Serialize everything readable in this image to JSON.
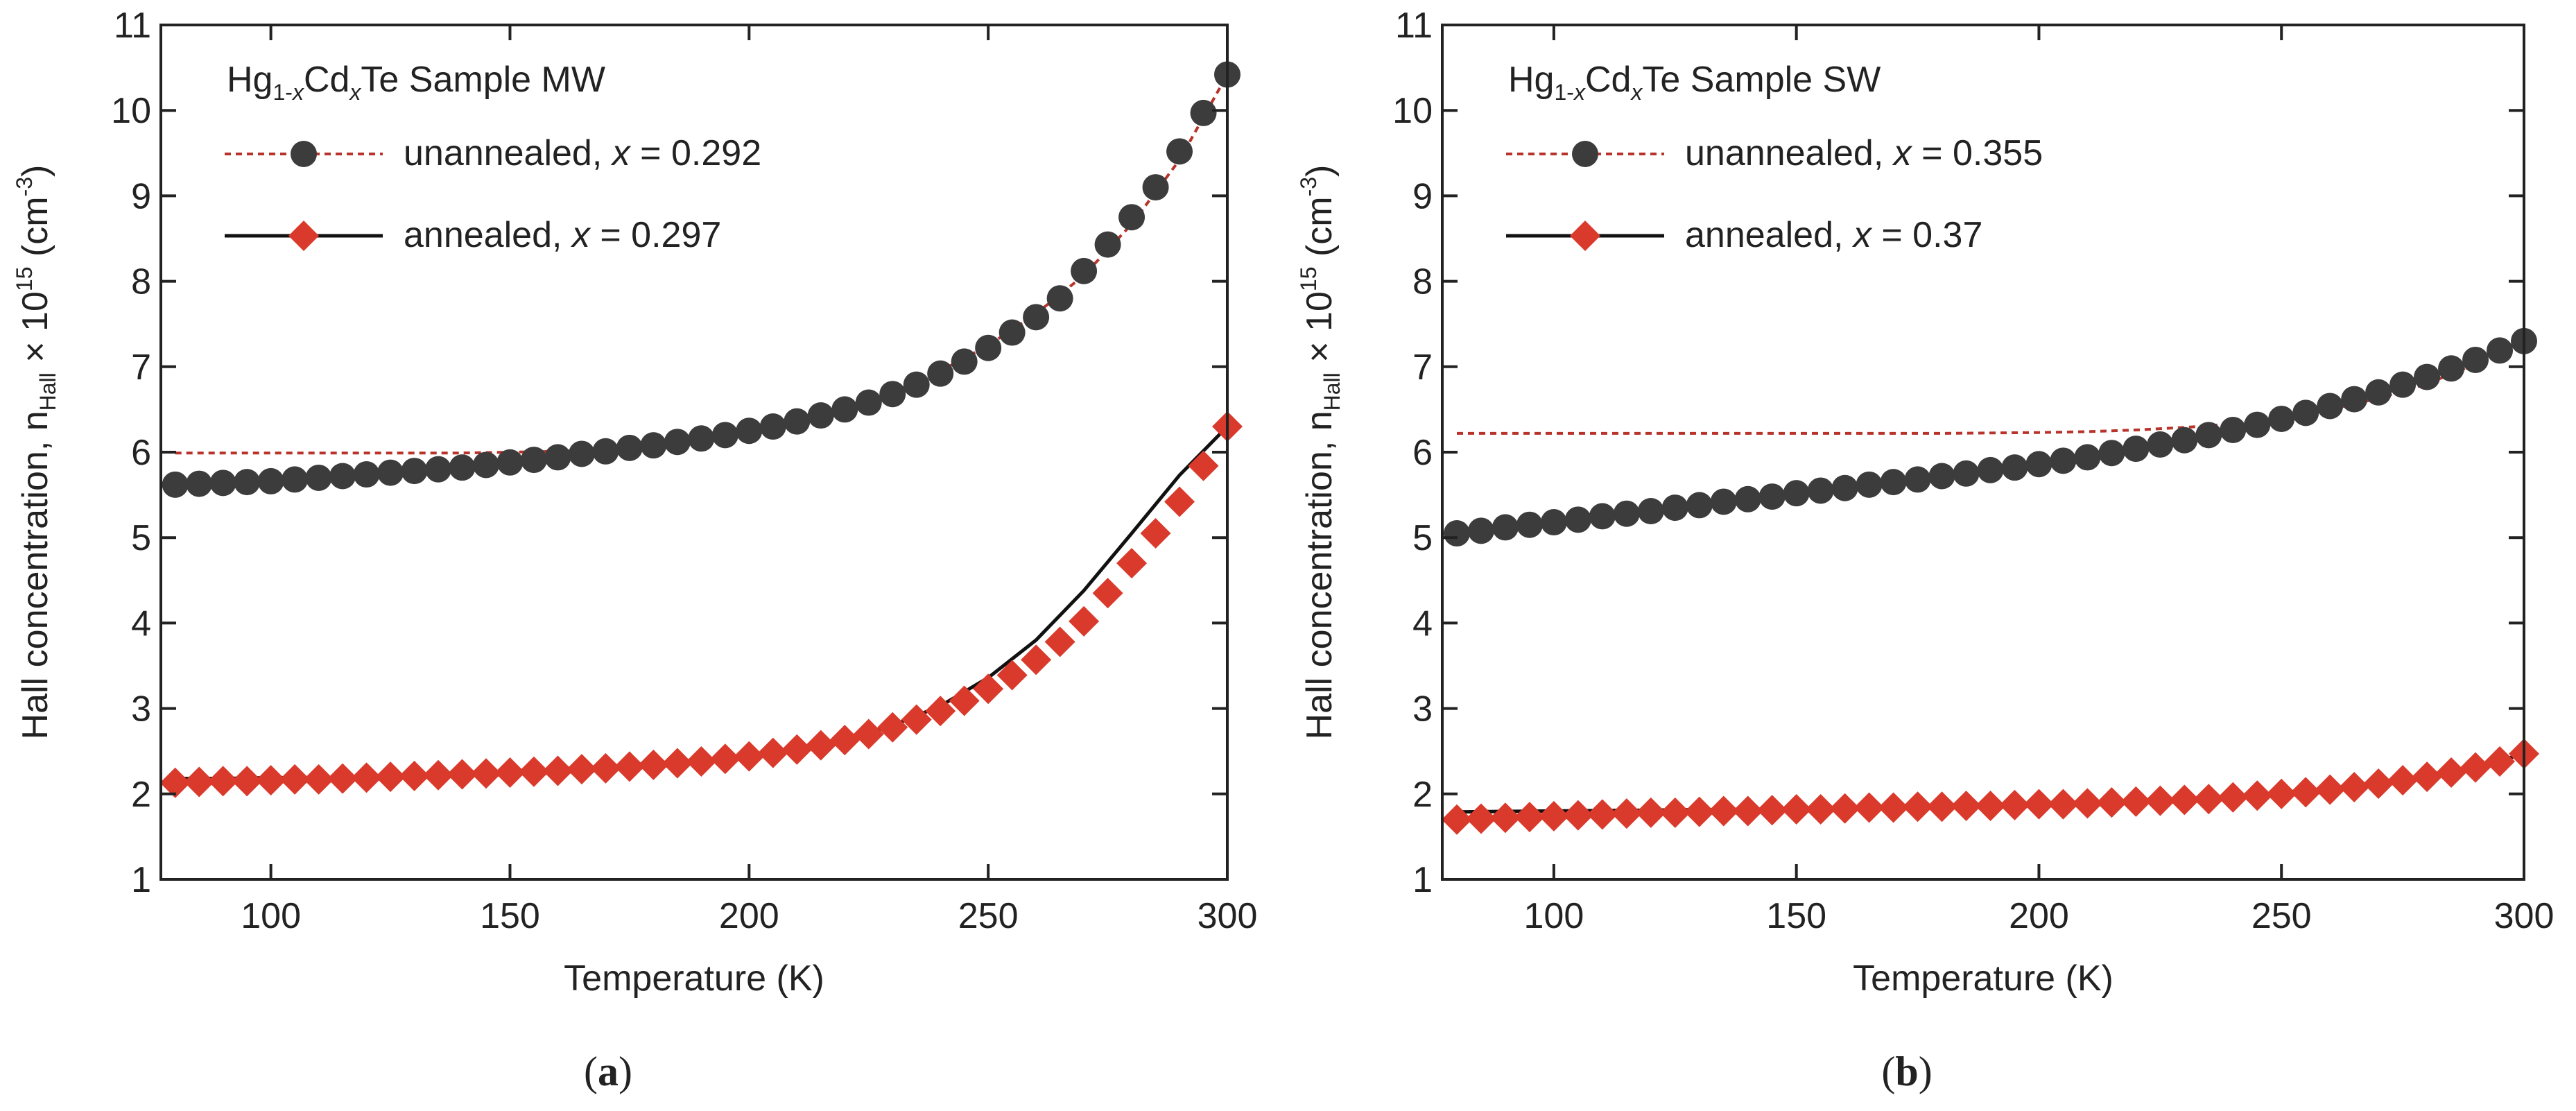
{
  "figure": {
    "panels": [
      {
        "id": "a",
        "label_letter": "a",
        "sample_prefix": "Hg",
        "sample_sub1": "1-",
        "sample_subx": "x",
        "sample_mid": "Cd",
        "sample_sub2": "x",
        "sample_suffix": "Te Sample MW",
        "legend": [
          {
            "name": "unannealed",
            "x_text": "x",
            "value_text": " = 0.292",
            "marker": "circle",
            "line": "dotted"
          },
          {
            "name": "annealed",
            "x_text": "x",
            "value_text": " = 0.297",
            "marker": "diamond",
            "line": "solid"
          }
        ]
      },
      {
        "id": "b",
        "label_letter": "b",
        "sample_prefix": "Hg",
        "sample_sub1": "1-",
        "sample_subx": "x",
        "sample_mid": "Cd",
        "sample_sub2": "x",
        "sample_suffix": "Te Sample SW",
        "legend": [
          {
            "name": "unannealed",
            "x_text": "x",
            "value_text": " = 0.355",
            "marker": "circle",
            "line": "dotted"
          },
          {
            "name": "annealed",
            "x_text": "x",
            "value_text": " = 0.37",
            "marker": "diamond",
            "line": "solid"
          }
        ]
      }
    ],
    "ylabel_main": "Hall concentration, n",
    "ylabel_sub": "Hall",
    "ylabel_times": " × 10",
    "ylabel_sup": "15",
    "ylabel_unit": " (cm",
    "ylabel_unit_sup": "-3",
    "ylabel_close": ")",
    "xlabel": "Temperature (K)"
  },
  "colors": {
    "unannealed_marker": "#3c3c3c",
    "annealed_marker": "#d93a2b",
    "fit_unannealed": "#b8332a",
    "fit_annealed": "#111111",
    "axis": "#222222"
  },
  "chart_data": [
    {
      "type": "scatter",
      "panel": "a",
      "title": "Hg1-xCdxTe Sample MW",
      "xlabel": "Temperature (K)",
      "ylabel": "Hall concentration, nHall × 10^15 (cm^-3)",
      "xlim": [
        77,
        300
      ],
      "ylim": [
        1,
        11
      ],
      "xticks": [
        100,
        150,
        200,
        250,
        300
      ],
      "yticks": [
        1,
        2,
        3,
        4,
        5,
        6,
        7,
        8,
        9,
        10,
        11
      ],
      "grid": false,
      "legend_position": "top-left",
      "series": [
        {
          "name": "unannealed, x = 0.292",
          "marker": "circle",
          "x": [
            80,
            85,
            90,
            95,
            100,
            105,
            110,
            115,
            120,
            125,
            130,
            135,
            140,
            145,
            150,
            155,
            160,
            165,
            170,
            175,
            180,
            185,
            190,
            195,
            200,
            205,
            210,
            215,
            220,
            225,
            230,
            235,
            240,
            245,
            250,
            255,
            260,
            265,
            270,
            275,
            280,
            285,
            290,
            295,
            300
          ],
          "values": [
            5.62,
            5.63,
            5.64,
            5.65,
            5.66,
            5.68,
            5.7,
            5.72,
            5.74,
            5.76,
            5.78,
            5.8,
            5.82,
            5.85,
            5.88,
            5.91,
            5.94,
            5.98,
            6.01,
            6.05,
            6.08,
            6.12,
            6.16,
            6.2,
            6.25,
            6.3,
            6.36,
            6.43,
            6.5,
            6.58,
            6.68,
            6.79,
            6.92,
            7.06,
            7.22,
            7.4,
            7.58,
            7.8,
            8.12,
            8.43,
            8.75,
            9.1,
            9.52,
            9.97,
            10.42
          ]
        },
        {
          "name": "annealed, x = 0.297",
          "marker": "diamond",
          "x": [
            80,
            85,
            90,
            95,
            100,
            105,
            110,
            115,
            120,
            125,
            130,
            135,
            140,
            145,
            150,
            155,
            160,
            165,
            170,
            175,
            180,
            185,
            190,
            195,
            200,
            205,
            210,
            215,
            220,
            225,
            230,
            235,
            240,
            245,
            250,
            255,
            260,
            265,
            270,
            275,
            280,
            285,
            290,
            295,
            300
          ],
          "values": [
            2.13,
            2.14,
            2.15,
            2.15,
            2.16,
            2.17,
            2.17,
            2.18,
            2.19,
            2.2,
            2.21,
            2.22,
            2.23,
            2.24,
            2.25,
            2.26,
            2.27,
            2.29,
            2.3,
            2.32,
            2.34,
            2.36,
            2.38,
            2.41,
            2.44,
            2.48,
            2.52,
            2.57,
            2.63,
            2.7,
            2.78,
            2.87,
            2.97,
            3.09,
            3.23,
            3.39,
            3.57,
            3.78,
            4.02,
            4.35,
            4.7,
            5.05,
            5.42,
            5.84,
            6.3
          ]
        },
        {
          "name": "unannealed fit",
          "line": "dotted",
          "x": [
            80,
            90,
            100,
            110,
            120,
            130,
            140,
            150,
            160,
            170,
            180,
            190,
            200,
            210,
            220,
            230,
            240,
            250,
            260,
            270,
            280,
            290,
            300
          ],
          "values": [
            5.99,
            5.99,
            5.99,
            5.99,
            5.99,
            5.99,
            5.99,
            6.0,
            6.01,
            6.03,
            6.07,
            6.13,
            6.22,
            6.34,
            6.5,
            6.7,
            6.95,
            7.25,
            7.62,
            8.07,
            8.67,
            9.42,
            10.42
          ]
        },
        {
          "name": "annealed fit",
          "line": "solid",
          "x": [
            80,
            90,
            100,
            110,
            120,
            130,
            140,
            150,
            160,
            170,
            180,
            190,
            200,
            210,
            220,
            230,
            240,
            250,
            260,
            270,
            280,
            290,
            300
          ],
          "values": [
            2.18,
            2.18,
            2.19,
            2.19,
            2.19,
            2.2,
            2.21,
            2.23,
            2.25,
            2.28,
            2.32,
            2.37,
            2.43,
            2.52,
            2.64,
            2.8,
            3.03,
            3.36,
            3.8,
            4.38,
            5.05,
            5.73,
            6.3
          ]
        }
      ]
    },
    {
      "type": "scatter",
      "panel": "b",
      "title": "Hg1-xCdxTe Sample SW",
      "xlabel": "Temperature (K)",
      "ylabel": "Hall concentration, nHall × 10^15 (cm^-3)",
      "xlim": [
        77,
        300
      ],
      "ylim": [
        1,
        11
      ],
      "xticks": [
        100,
        150,
        200,
        250,
        300
      ],
      "yticks": [
        1,
        2,
        3,
        4,
        5,
        6,
        7,
        8,
        9,
        10,
        11
      ],
      "grid": false,
      "legend_position": "top-left",
      "series": [
        {
          "name": "unannealed, x = 0.355",
          "marker": "circle",
          "x": [
            80,
            85,
            90,
            95,
            100,
            105,
            110,
            115,
            120,
            125,
            130,
            135,
            140,
            145,
            150,
            155,
            160,
            165,
            170,
            175,
            180,
            185,
            190,
            195,
            200,
            205,
            210,
            215,
            220,
            225,
            230,
            235,
            240,
            245,
            250,
            255,
            260,
            265,
            270,
            275,
            280,
            285,
            290,
            295,
            300
          ],
          "values": [
            5.05,
            5.08,
            5.12,
            5.15,
            5.18,
            5.21,
            5.25,
            5.28,
            5.31,
            5.35,
            5.38,
            5.42,
            5.45,
            5.48,
            5.52,
            5.55,
            5.58,
            5.62,
            5.65,
            5.68,
            5.72,
            5.75,
            5.79,
            5.82,
            5.86,
            5.9,
            5.94,
            5.99,
            6.04,
            6.09,
            6.14,
            6.2,
            6.26,
            6.32,
            6.39,
            6.46,
            6.54,
            6.62,
            6.7,
            6.79,
            6.88,
            6.98,
            7.08,
            7.19,
            7.3
          ]
        },
        {
          "name": "annealed, x = 0.37",
          "marker": "diamond",
          "x": [
            80,
            85,
            90,
            95,
            100,
            105,
            110,
            115,
            120,
            125,
            130,
            135,
            140,
            145,
            150,
            155,
            160,
            165,
            170,
            175,
            180,
            185,
            190,
            195,
            200,
            205,
            210,
            215,
            220,
            225,
            230,
            235,
            240,
            245,
            250,
            255,
            260,
            265,
            270,
            275,
            280,
            285,
            290,
            295,
            300
          ],
          "values": [
            1.7,
            1.71,
            1.72,
            1.73,
            1.74,
            1.75,
            1.76,
            1.77,
            1.78,
            1.78,
            1.79,
            1.8,
            1.8,
            1.81,
            1.82,
            1.82,
            1.83,
            1.84,
            1.84,
            1.85,
            1.85,
            1.86,
            1.86,
            1.87,
            1.88,
            1.88,
            1.89,
            1.9,
            1.91,
            1.92,
            1.93,
            1.94,
            1.96,
            1.98,
            2.0,
            2.02,
            2.05,
            2.08,
            2.12,
            2.16,
            2.2,
            2.25,
            2.31,
            2.38,
            2.47
          ]
        },
        {
          "name": "unannealed fit",
          "line": "dotted",
          "x": [
            80,
            100,
            120,
            140,
            160,
            180,
            200,
            210,
            220,
            230,
            240,
            250,
            260,
            270,
            280,
            290,
            300
          ],
          "values": [
            6.22,
            6.22,
            6.22,
            6.22,
            6.22,
            6.22,
            6.23,
            6.24,
            6.26,
            6.29,
            6.33,
            6.4,
            6.5,
            6.63,
            6.8,
            7.03,
            7.3
          ]
        },
        {
          "name": "annealed fit",
          "line": "solid",
          "x": [
            80,
            100,
            120,
            140,
            160,
            180,
            200,
            210,
            220,
            230,
            240,
            250,
            260,
            270,
            280,
            290,
            300
          ],
          "values": [
            1.79,
            1.8,
            1.81,
            1.82,
            1.83,
            1.85,
            1.87,
            1.88,
            1.9,
            1.92,
            1.95,
            1.99,
            2.05,
            2.12,
            2.2,
            2.31,
            2.47
          ]
        }
      ]
    }
  ]
}
